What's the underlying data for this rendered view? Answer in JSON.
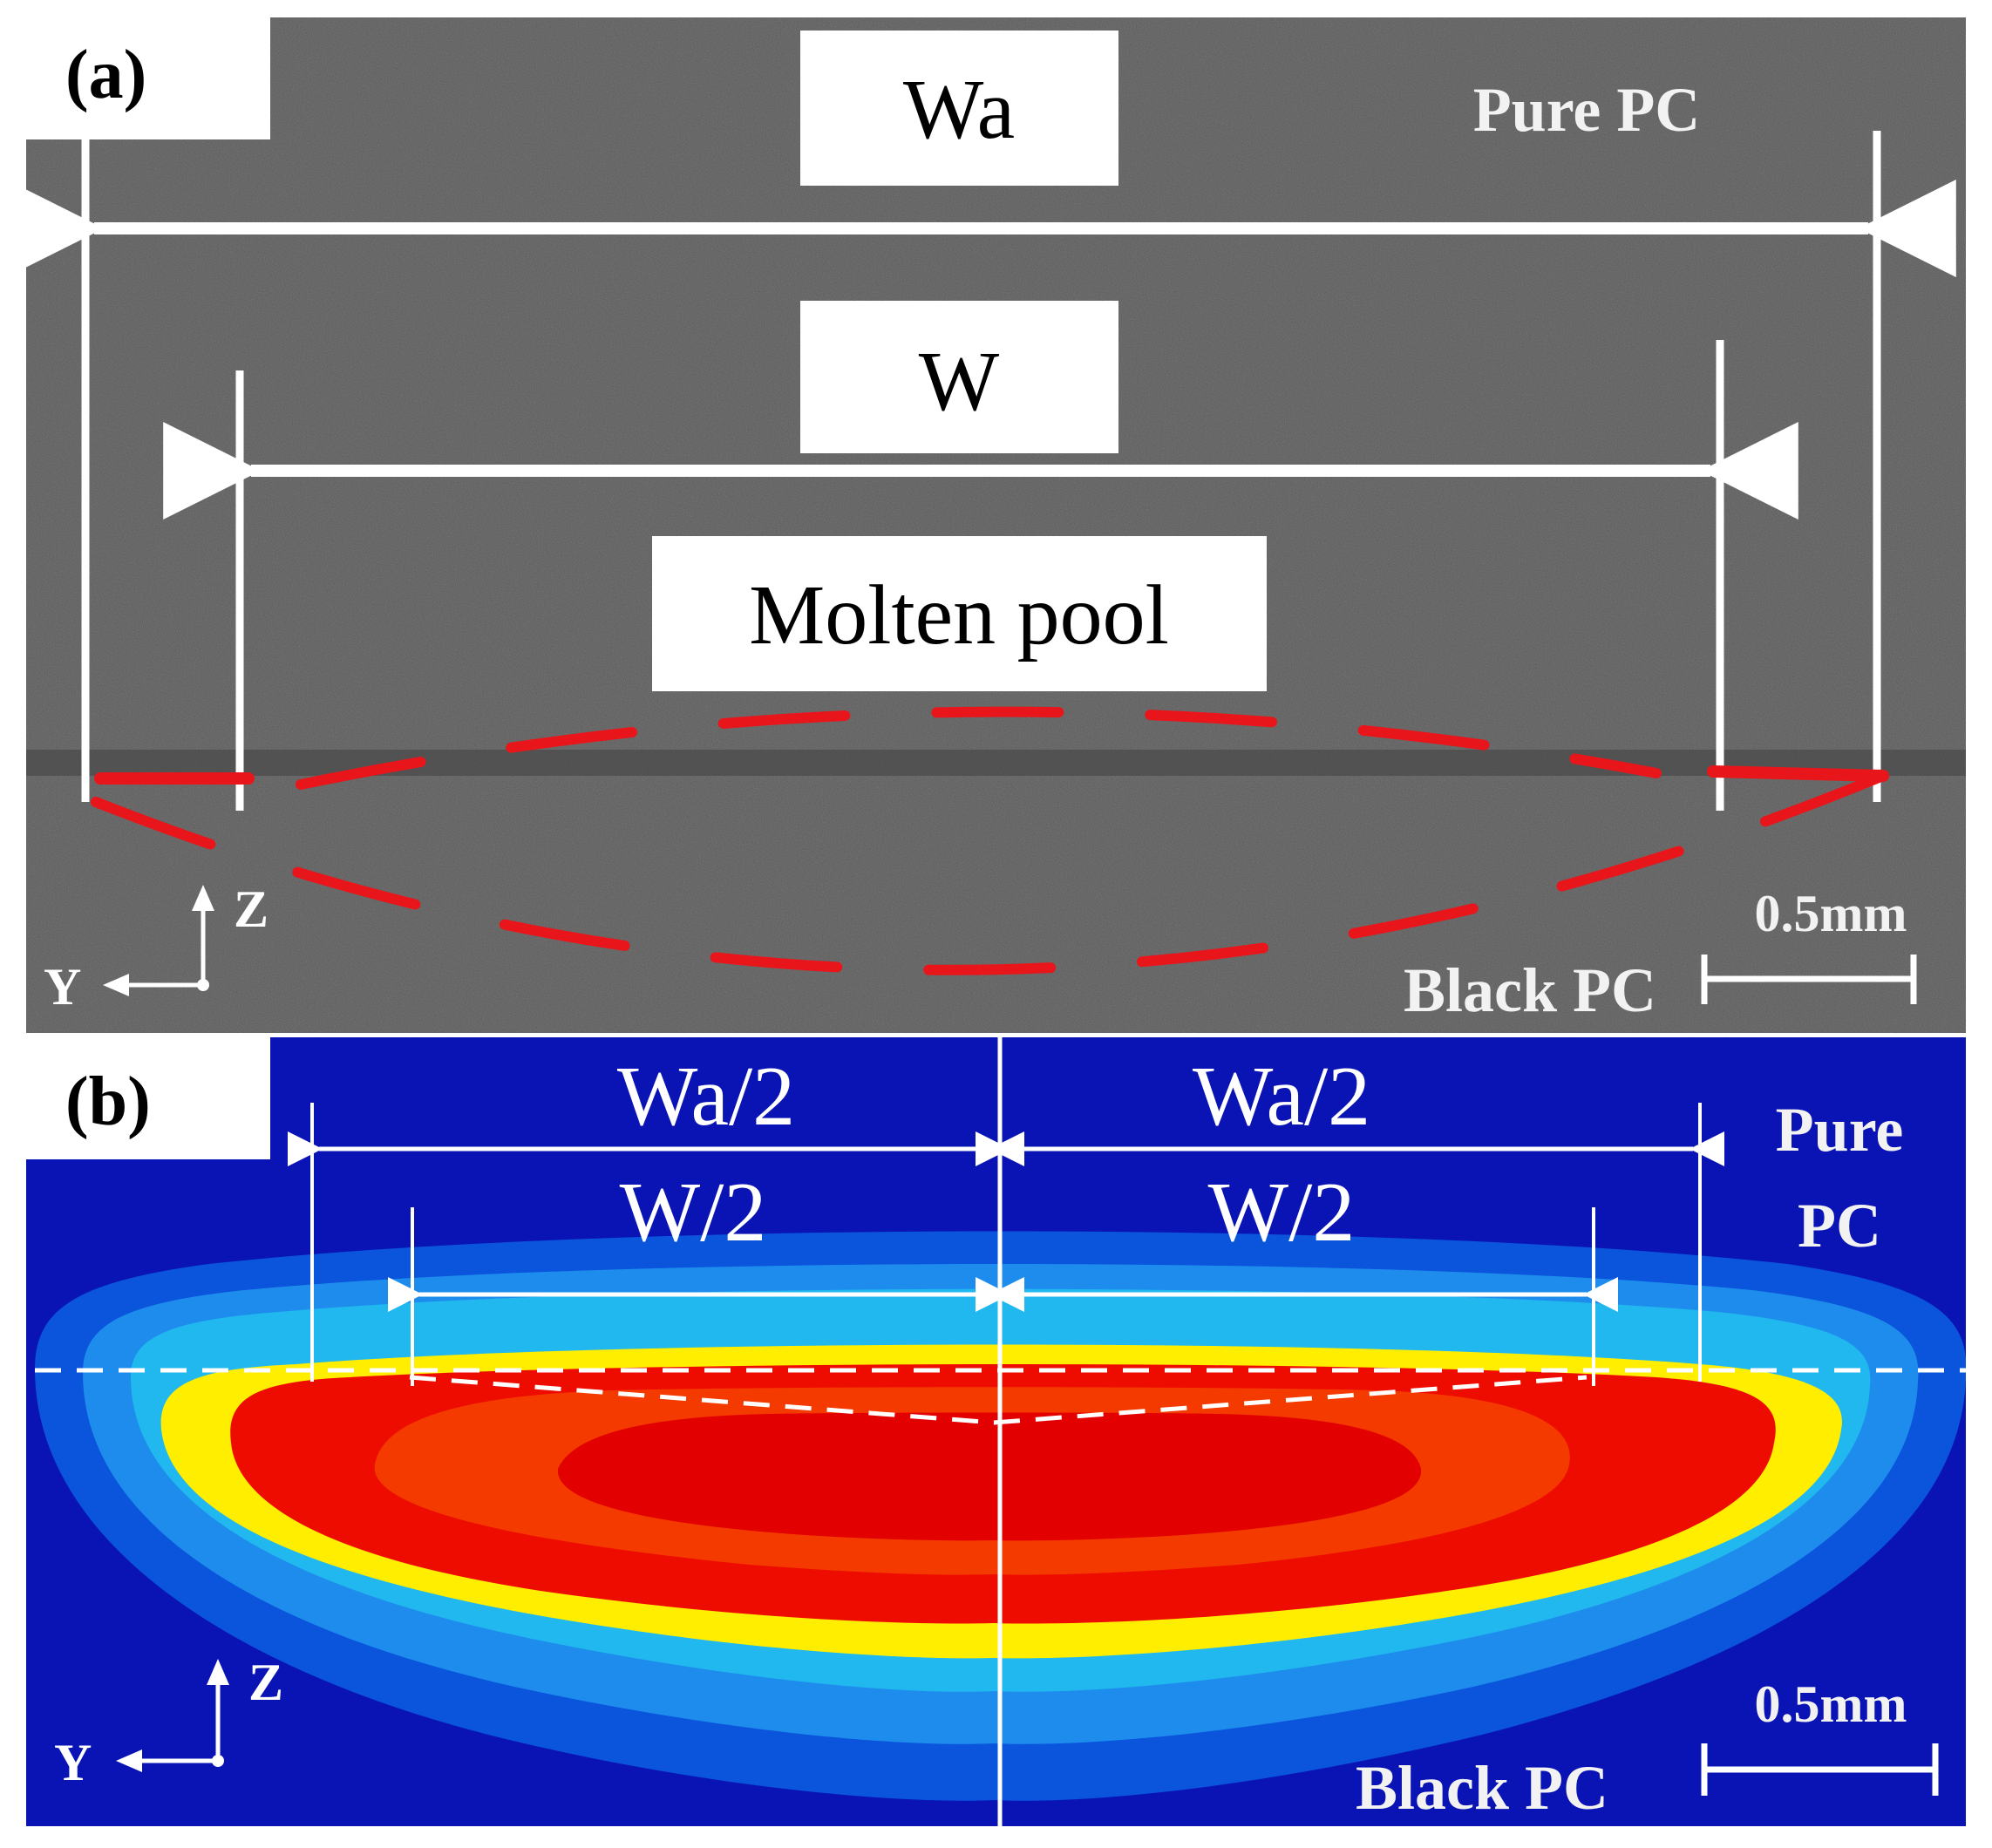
{
  "panel_a": {
    "tag": "(a)",
    "label_wa": "Wa",
    "label_w": "W",
    "label_pool": "Molten pool",
    "label_top_material": "Pure PC",
    "label_bottom_material": "Black PC",
    "scale_label": "0.5mm",
    "axis_z": "Z",
    "axis_y": "Y",
    "boundary_color": "#e8161b",
    "background_color": "#5b5b5b"
  },
  "panel_b": {
    "tag": "(b)",
    "label_wa_left": "Wa/2",
    "label_wa_right": "Wa/2",
    "label_w_left": "W/2",
    "label_w_right": "W/2",
    "label_top_material_line1": "Pure",
    "label_top_material_line2": "PC",
    "label_bottom_material": "Black PC",
    "scale_label": "0.5mm",
    "axis_z": "Z",
    "axis_y": "Y",
    "contour_colors": [
      "#0a14b4",
      "#0a55dc",
      "#1e8ced",
      "#20b8ef",
      "#ffee00",
      "#ee0c00",
      "#f53a00",
      "#e20000"
    ]
  }
}
